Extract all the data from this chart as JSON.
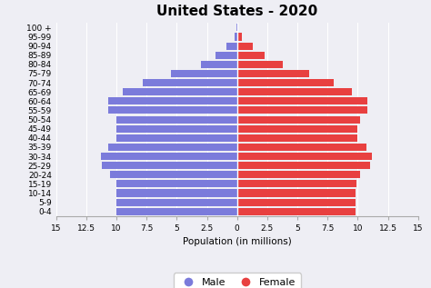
{
  "title": "United States - 2020",
  "age_groups": [
    "0-4",
    "5-9",
    "10-14",
    "15-19",
    "20-24",
    "25-29",
    "30-34",
    "35-39",
    "40-44",
    "45-49",
    "50-54",
    "55-59",
    "60-64",
    "65-69",
    "70-74",
    "75-79",
    "80-84",
    "85-89",
    "90-94",
    "95-99",
    "100 +"
  ],
  "male": [
    10.0,
    10.0,
    10.0,
    10.0,
    10.5,
    11.2,
    11.3,
    10.7,
    10.0,
    10.0,
    10.0,
    10.7,
    10.7,
    9.5,
    7.8,
    5.5,
    3.0,
    1.8,
    0.9,
    0.2,
    0.05
  ],
  "female": [
    9.8,
    9.8,
    9.8,
    9.9,
    10.2,
    11.0,
    11.2,
    10.7,
    10.0,
    10.0,
    10.2,
    10.8,
    10.8,
    9.5,
    8.0,
    6.0,
    3.8,
    2.3,
    1.3,
    0.4,
    0.1
  ],
  "male_color": "#7b7bdb",
  "female_color": "#e84040",
  "xlabel": "Population (in millions)",
  "xlim": 15,
  "xtick_positions": [
    -15,
    -12.5,
    -10,
    -7.5,
    -5,
    -2.5,
    0,
    2.5,
    5,
    7.5,
    10,
    12.5,
    15
  ],
  "xtick_labels": [
    "15",
    "12.5",
    "10",
    "7.5",
    "5",
    "2.5",
    "0",
    "2.5",
    "5",
    "7.5",
    "10",
    "12.5",
    "15"
  ],
  "background_color": "#eeeef4",
  "bar_height": 0.8,
  "title_fontsize": 11,
  "label_fontsize": 7.5,
  "tick_fontsize": 6.5,
  "legend_fontsize": 8
}
